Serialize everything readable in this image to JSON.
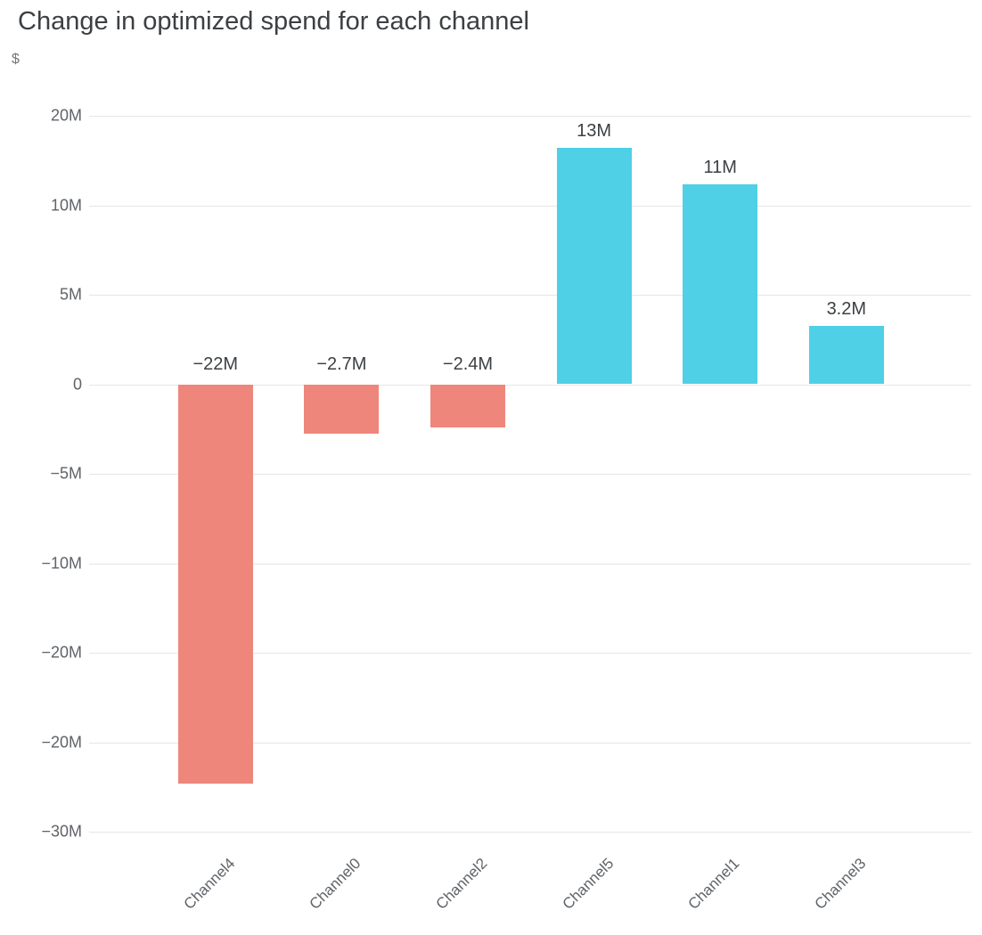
{
  "chart_data": {
    "type": "bar",
    "title": "Change in optimized spend for each channel",
    "ylabel": "$",
    "categories": [
      "Channel4",
      "Channel0",
      "Channel2",
      "Channel5",
      "Channel1",
      "Channel3"
    ],
    "values": [
      -22,
      -2.7,
      -2.4,
      13,
      11,
      3.2
    ],
    "value_unit_suffix": "M",
    "bar_labels": [
      "−22M",
      "−2.7M",
      "−2.4M",
      "13M",
      "11M",
      "3.2M"
    ],
    "y_tick_labels": [
      "20M",
      "10M",
      "5M",
      "0",
      "−5M",
      "−10M",
      "−20M",
      "−20M",
      "−30M"
    ],
    "ylim_px_reference": "ticks evenly spaced, zero baseline at 4th tick",
    "grid": true,
    "legend": false,
    "colors": {
      "negative_bar": "#ee867c",
      "positive_bar": "#4fd0e6",
      "title_text": "#3c4043",
      "axis_text": "#5f6368",
      "gridline": "#e6e6e6",
      "background": "#ffffff"
    }
  }
}
